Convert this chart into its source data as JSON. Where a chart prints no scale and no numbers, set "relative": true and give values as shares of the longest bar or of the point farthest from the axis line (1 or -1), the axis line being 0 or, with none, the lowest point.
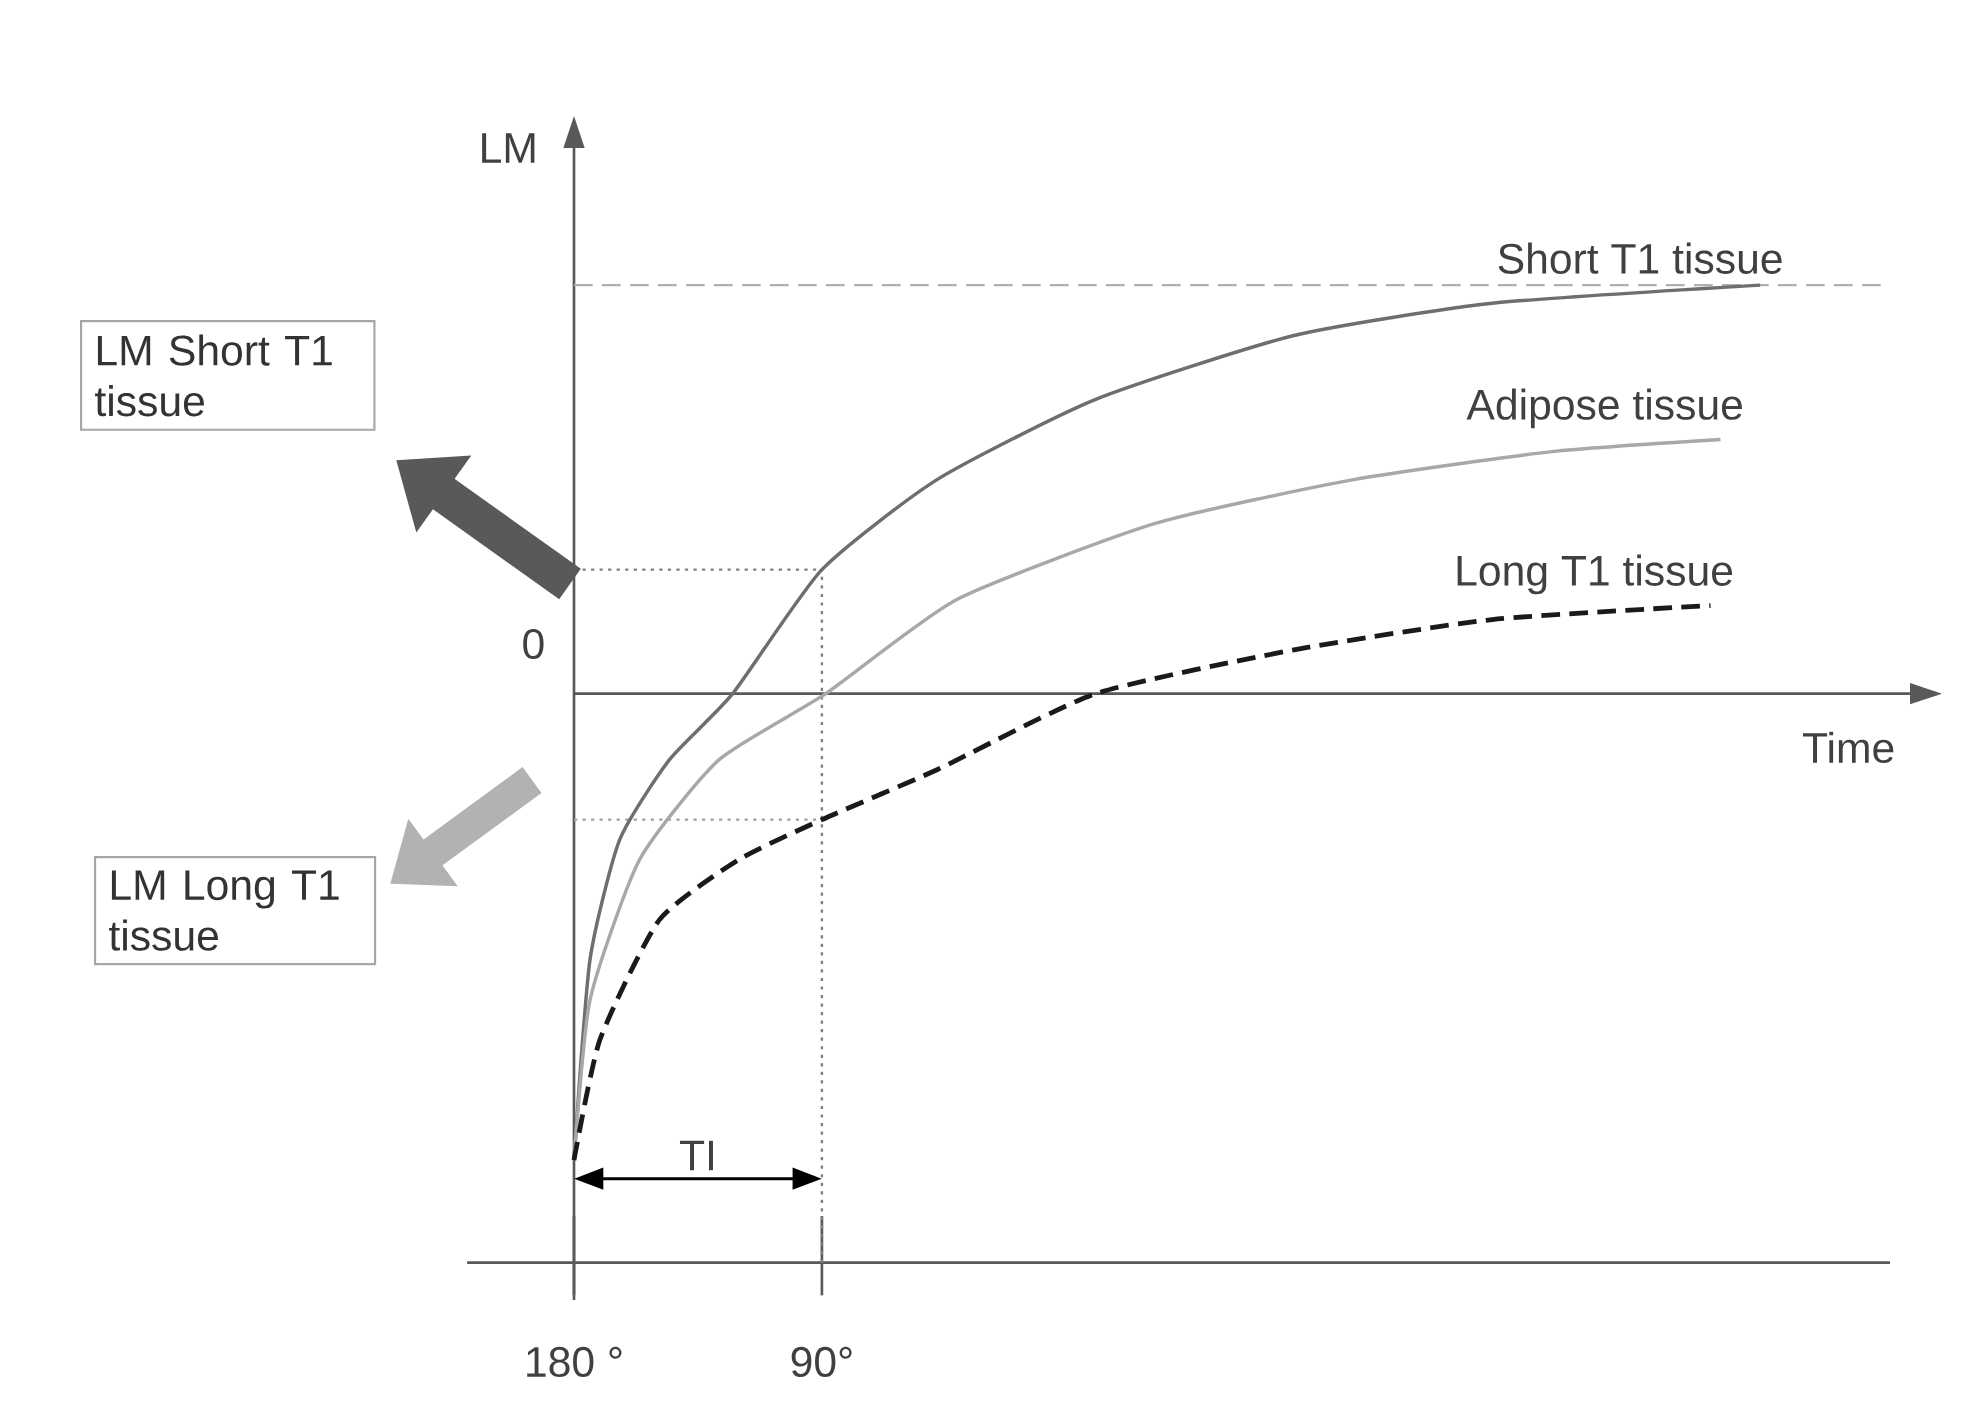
{
  "chart_data": {
    "type": "line",
    "relative": true,
    "xlabel": "Time",
    "ylabel": "LM",
    "xlim": [
      180,
      -305
    ],
    "xticks": [
      {
        "value": 180,
        "label": "180 °"
      },
      {
        "value": 90,
        "label": "90°"
      }
    ],
    "series": [
      {
        "name": "Short T1 tissue",
        "color": "#6e6e6e",
        "line_style": "solid",
        "x": [
          180,
          174.2,
          163.4,
          145.4,
          122.4,
          90,
          48.2,
          -9.4,
          -81.4,
          -153.4,
          -250.6
        ],
        "values": [
          -1.0,
          -0.571,
          -0.313,
          -0.142,
          0,
          0.266,
          0.459,
          0.631,
          0.768,
          0.837,
          0.876
        ]
      },
      {
        "name": "Adipose tissue",
        "color": "#a8a8a8",
        "line_style": "solid",
        "x": [
          180,
          174.2,
          156.2,
          127.4,
          88.6,
          41.0,
          -31.0,
          -103.0,
          -175.0,
          -236.2
        ],
        "values": [
          -1.0,
          -0.657,
          -0.356,
          -0.142,
          0,
          0.202,
          0.365,
          0.459,
          0.519,
          0.545
        ]
      },
      {
        "name": "Long T1 tissue",
        "color": "#1a1a1a",
        "line_style": "dashed",
        "x": [
          180,
          170.6,
          149.0,
          120.2,
          90,
          48.2,
          -9.4,
          -81.4,
          -153.4,
          -232.6
        ],
        "values": [
          -1.0,
          -0.742,
          -0.485,
          -0.356,
          -0.27,
          -0.163,
          0,
          0.094,
          0.159,
          0.189
        ]
      }
    ],
    "ref_lines": [
      {
        "axis": "y",
        "value": 0.876,
        "color": "#b0b0b0",
        "line_style": "dashed"
      },
      {
        "axis": "y",
        "value": 0.266,
        "color": "#808080",
        "line_style": "dotted"
      },
      {
        "axis": "y",
        "value": -0.27,
        "color": "#a0a0a0",
        "line_style": "dotted"
      },
      {
        "axis": "x",
        "value": 90,
        "color": "#808080",
        "line_style": "dotted"
      }
    ],
    "annotations": [
      "0",
      "LM Short T1 tissue",
      "LM Long T1 tissue",
      "TI"
    ]
  }
}
